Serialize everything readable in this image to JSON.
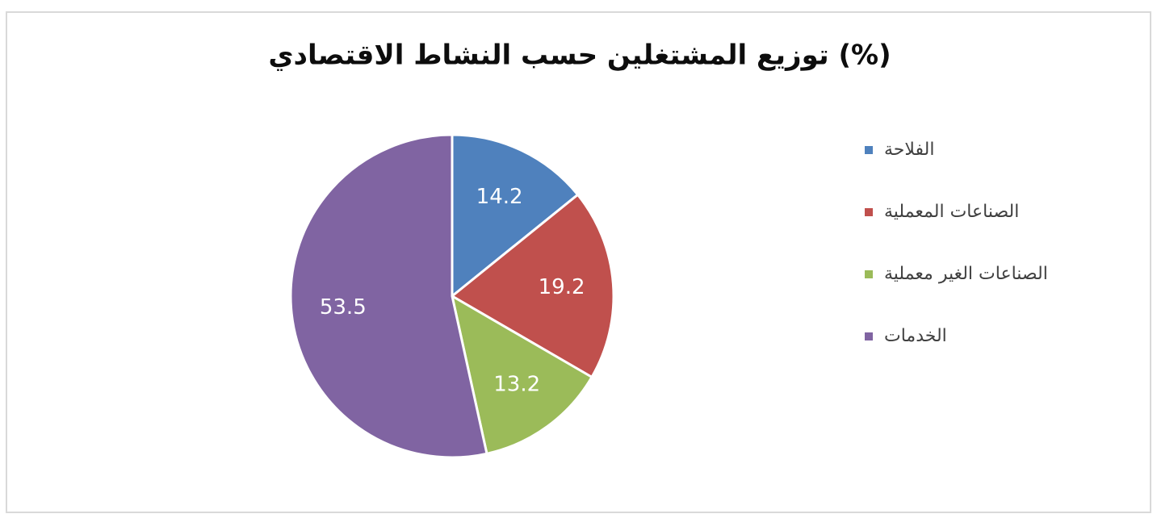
{
  "chart_data": {
    "type": "pie",
    "title": "توزيع المشتغلين حسب النشاط الاقتصادي (%)",
    "categories": [
      "الفلاحة",
      "الصناعات المعملية",
      "الصناعات الغير معملية",
      "الخدمات"
    ],
    "values": [
      14.2,
      19.2,
      13.2,
      53.5
    ],
    "colors": [
      "#4f81bd",
      "#c0504d",
      "#9bbb59",
      "#8064a2"
    ],
    "legend": "right"
  }
}
